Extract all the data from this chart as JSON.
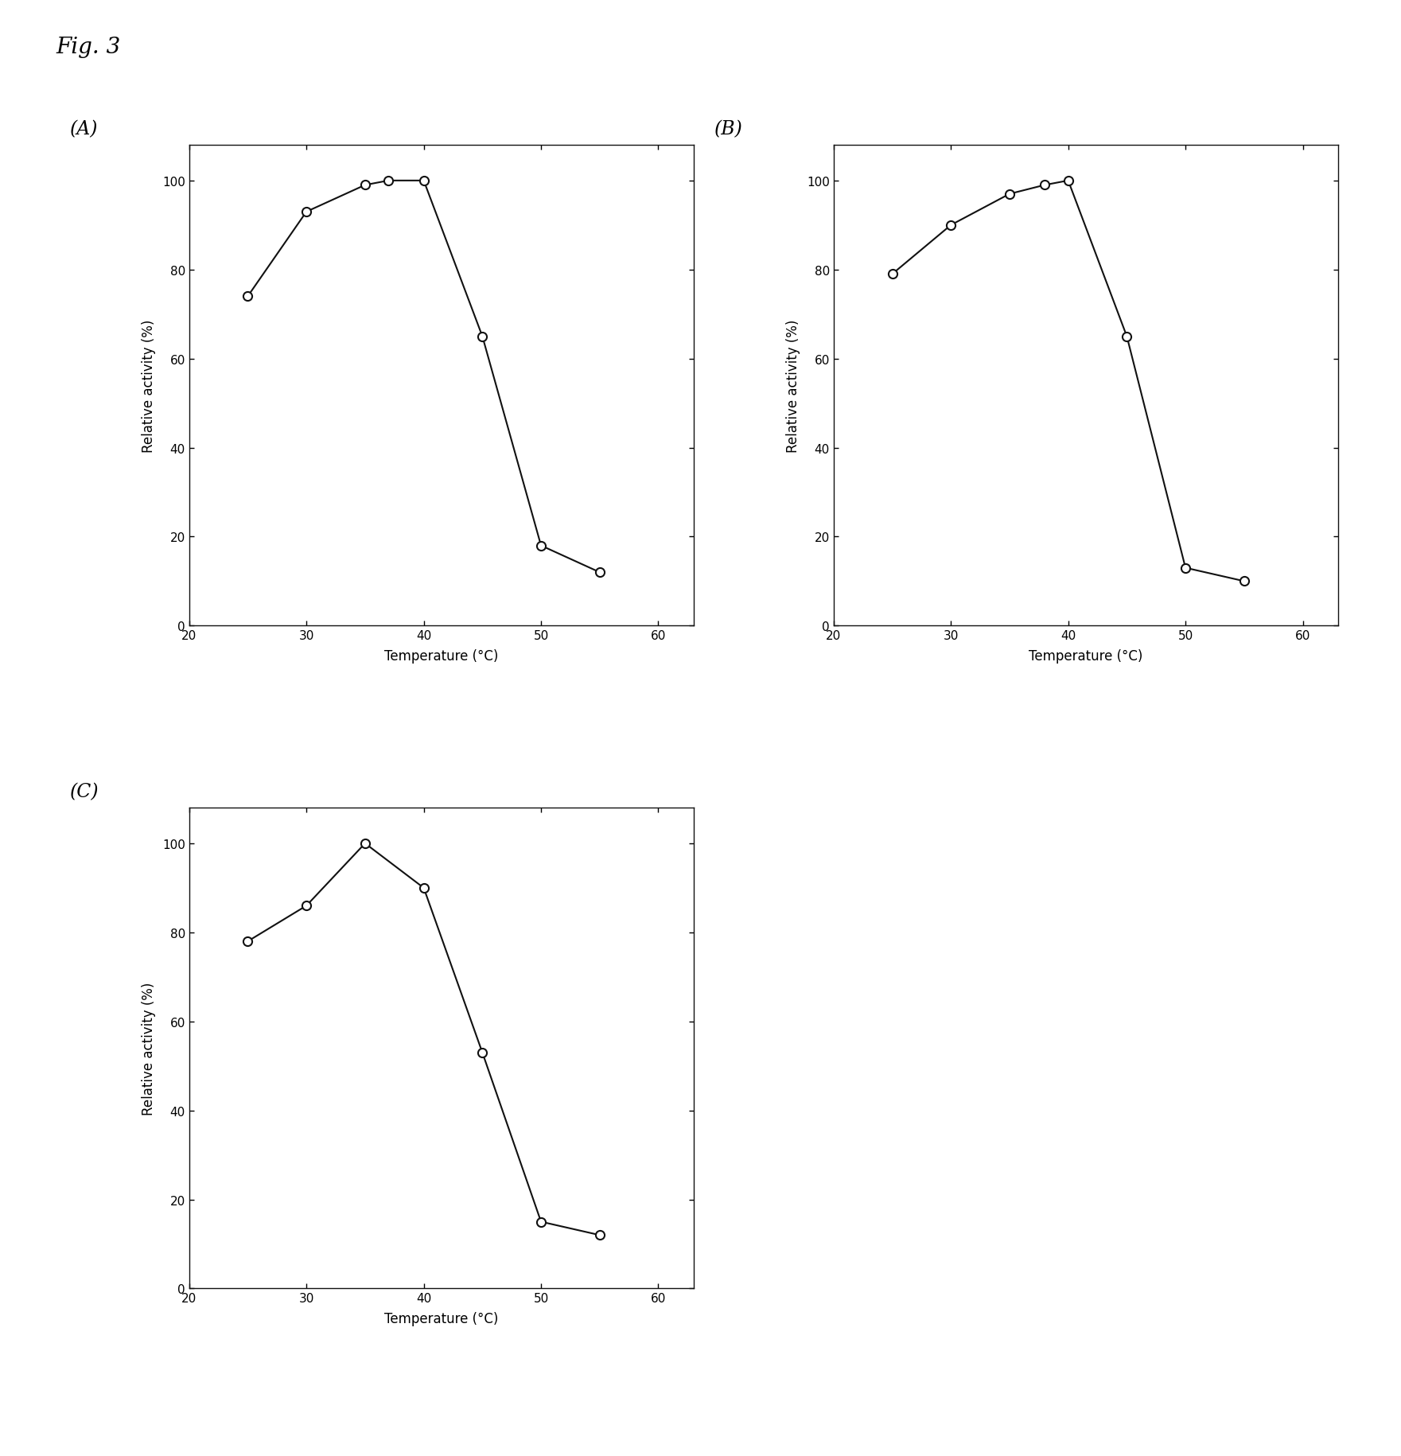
{
  "fig_label": "Fig. 3",
  "panels": [
    {
      "label": "(A)",
      "x": [
        25,
        30,
        35,
        37,
        40,
        45,
        50,
        55
      ],
      "y": [
        74,
        93,
        99,
        100,
        100,
        65,
        18,
        12
      ],
      "xlabel": "Temperature (°C)",
      "ylabel": "Relative activity (%)",
      "xlim": [
        22,
        63
      ],
      "ylim": [
        0,
        108
      ],
      "xticks": [
        20,
        30,
        40,
        50,
        60
      ],
      "yticks": [
        0,
        20,
        40,
        60,
        80,
        100
      ]
    },
    {
      "label": "(B)",
      "x": [
        25,
        30,
        35,
        38,
        40,
        45,
        50,
        55
      ],
      "y": [
        79,
        90,
        97,
        99,
        100,
        65,
        13,
        10
      ],
      "xlabel": "Temperature (°C)",
      "ylabel": "Relative activity (%)",
      "xlim": [
        22,
        63
      ],
      "ylim": [
        0,
        108
      ],
      "xticks": [
        20,
        30,
        40,
        50,
        60
      ],
      "yticks": [
        0,
        20,
        40,
        60,
        80,
        100
      ]
    },
    {
      "label": "(C)",
      "x": [
        25,
        30,
        35,
        40,
        45,
        50,
        55
      ],
      "y": [
        78,
        86,
        100,
        90,
        53,
        15,
        12
      ],
      "xlabel": "Temperature (°C)",
      "ylabel": "Relative activity (%)",
      "xlim": [
        22,
        63
      ],
      "ylim": [
        0,
        108
      ],
      "xticks": [
        20,
        30,
        40,
        50,
        60
      ],
      "yticks": [
        0,
        20,
        40,
        60,
        80,
        100
      ]
    }
  ],
  "background_color": "#ffffff",
  "line_color": "#111111",
  "marker_facecolor": "white",
  "marker_edgecolor": "#111111",
  "marker_size": 8,
  "line_width": 1.5,
  "font_size_label": 12,
  "font_size_tick": 11,
  "font_size_panel_label": 17,
  "font_size_fig_label": 20
}
